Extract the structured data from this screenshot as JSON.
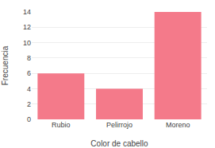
{
  "chart_data": {
    "type": "bar",
    "categories": [
      "Rubio",
      "Pelirrojo",
      "Moreno"
    ],
    "values": [
      6,
      4,
      14
    ],
    "color": "#f47a8a",
    "xlabel": "Color de cabello",
    "ylabel": "Frecuencia",
    "ylim": [
      0,
      14
    ],
    "yticks": [
      0,
      2,
      4,
      6,
      8,
      10,
      12,
      14
    ],
    "grid": true
  }
}
